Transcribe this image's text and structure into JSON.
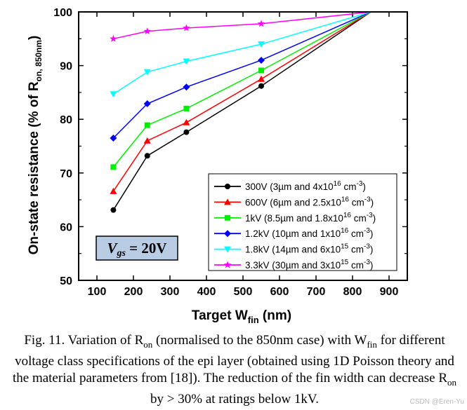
{
  "chart_data": {
    "type": "line",
    "xlabel_main": "Target W",
    "xlabel_sub": "fin",
    "xlabel_unit": " (nm)",
    "ylabel_main": "On-state resistance (% of R",
    "ylabel_sub": "on, 850nm",
    "ylabel_end": ")",
    "xlim": [
      50,
      950
    ],
    "ylim": [
      50,
      100
    ],
    "xticks": [
      100,
      200,
      300,
      400,
      500,
      600,
      700,
      800,
      900
    ],
    "yticks": [
      50,
      60,
      70,
      80,
      90,
      100
    ],
    "x": [
      145,
      238,
      345,
      550,
      850
    ],
    "series": [
      {
        "name": "300V",
        "legend": [
          "300V (3µm and 4x10",
          "16",
          " cm",
          "-3",
          ")"
        ],
        "color": "#000000",
        "marker": "circle",
        "values": [
          63.1,
          73.2,
          77.6,
          86.2,
          100
        ]
      },
      {
        "name": "600V",
        "legend": [
          "600V (6µm and 2.5x10",
          "16",
          " cm",
          "-3",
          ")"
        ],
        "color": "#ff0000",
        "marker": "triangle-up",
        "values": [
          66.6,
          76.0,
          79.4,
          87.5,
          100
        ]
      },
      {
        "name": "1kV",
        "legend": [
          "1kV (8.5µm and 1.8x10",
          "16",
          " cm",
          "-3",
          ")"
        ],
        "color": "#00ee00",
        "marker": "square",
        "values": [
          71.1,
          78.9,
          82.0,
          89.1,
          100
        ]
      },
      {
        "name": "1.2kV",
        "legend": [
          "1.2kV (10µm and 1x10",
          "16",
          " cm",
          "-3",
          ")"
        ],
        "color": "#0000ff",
        "marker": "diamond",
        "values": [
          76.5,
          82.9,
          86.0,
          91.0,
          100
        ]
      },
      {
        "name": "1.8kV",
        "legend": [
          "1.8kV (14µm and 6x10",
          "15",
          " cm",
          "-3",
          ")"
        ],
        "color": "#00ffff",
        "marker": "triangle-down",
        "values": [
          84.7,
          88.8,
          90.8,
          94.0,
          100
        ]
      },
      {
        "name": "3.3kV",
        "legend": [
          "3.3kV (30µm and 3x10",
          "15",
          " cm",
          "-3",
          ")"
        ],
        "color": "#ff00ff",
        "marker": "star",
        "values": [
          95.0,
          96.4,
          97.0,
          97.8,
          100
        ]
      }
    ],
    "annotation": {
      "v": "V",
      "sub": "gs",
      "rest": " = 20V",
      "box_color": "#b8cce4"
    }
  },
  "caption": {
    "p1": "Fig. 11. Variation of R",
    "s1": "on",
    "p2": " (normalised to the 850nm case) with W",
    "s2": "fin",
    "p3": " for different voltage class specifications of the epi layer (obtained using 1D Poisson theory and the material parameters from [18]). The reduction of the fin width can decrease R",
    "s3": "on",
    "p4": " by > 30% at ratings below 1kV."
  },
  "watermark": "CSDN @Eren-Yu"
}
